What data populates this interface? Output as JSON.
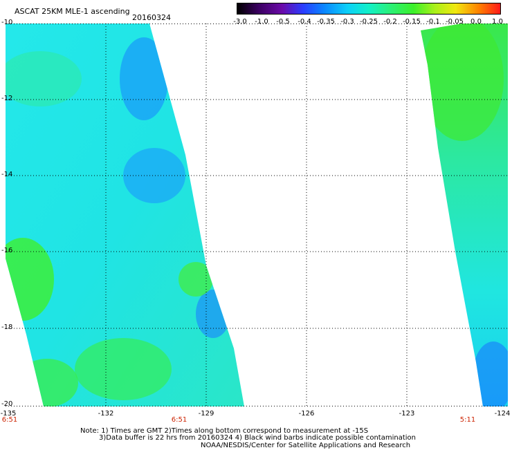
{
  "header": {
    "title": "ASCAT 25KM MLE-1 ascending",
    "date": "20160324"
  },
  "colorbar": {
    "labels": [
      "-3.0",
      "-1.0",
      "-0.5",
      "-0.4",
      "-0.35",
      "-0.3",
      "-0.25",
      "-0.2",
      "-0.15",
      "-0.1",
      "-0.05",
      "0.0",
      "1.0"
    ],
    "colors": [
      "#000000",
      "#3a0060",
      "#6a0aa8",
      "#2a3cff",
      "#0a86ff",
      "#0cd0f8",
      "#12f0c8",
      "#2af07a",
      "#3cf02a",
      "#a8f01a",
      "#f0e810",
      "#ff8000",
      "#ff1a1a"
    ]
  },
  "map": {
    "lon_range": [
      -135,
      -124
    ],
    "lat_range": [
      -20,
      -10
    ],
    "lon_ticks": [
      "-135",
      "-132",
      "-129",
      "-126",
      "-123",
      "-124"
    ],
    "lat_ticks": [
      "-10",
      "-12",
      "-14",
      "-16",
      "-18",
      "-20"
    ],
    "colors": {
      "cyan": "#22e8e0",
      "blue": "#1a78ff",
      "green": "#30ee40"
    }
  },
  "times": [
    "6:51",
    "6:51",
    "5:11"
  ],
  "notes": {
    "line1": "Note: 1) Times are GMT 2)Times along bottom correspond to measurement at -15S",
    "line2": "3)Data buffer is 22 hrs from 20160324 4) Black wind barbs indicate possible contamination",
    "line3": "NOAA/NESDIS/Center for Satellite Applications and Research"
  }
}
